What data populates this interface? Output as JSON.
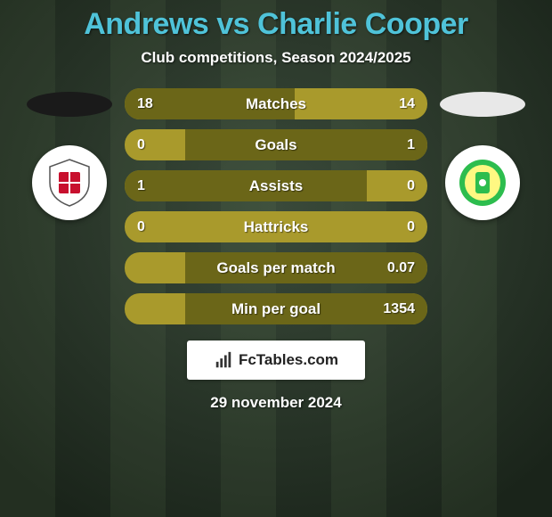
{
  "background": {
    "color_from": "#3a4a3a",
    "color_to": "#1a241a",
    "stripe_color_light": "rgba(120,150,100,0.10)",
    "stripe_color_dark": "rgba(0,0,0,0.0)",
    "stripe_width": 62
  },
  "title": {
    "text": "Andrews vs Charlie Cooper",
    "color": "#4fc3d9",
    "font_size": 34
  },
  "subtitle": {
    "text": "Club competitions, Season 2024/2025",
    "color": "#ffffff",
    "font_size": 17
  },
  "left_team": {
    "ellipse_color": "#1a1a1a",
    "crest_bg": "#ffffff",
    "crest_accent": "#c8102e",
    "crest_label": "WOKING"
  },
  "right_team": {
    "ellipse_color": "#e8e8e8",
    "crest_bg": "#ffffff",
    "crest_accent": "#2dbd4e",
    "crest_label": "YEOVIL TOWN"
  },
  "bars": {
    "track_color": "#a99a2c",
    "fill_color": "#6b6618",
    "text_color": "#ffffff",
    "stats": [
      {
        "label": "Matches",
        "left_val": "18",
        "right_val": "14",
        "left_pct": 56.25,
        "right_pct": 0
      },
      {
        "label": "Goals",
        "left_val": "0",
        "right_val": "1",
        "left_pct": 0,
        "right_pct": 80
      },
      {
        "label": "Assists",
        "left_val": "1",
        "right_val": "0",
        "left_pct": 80,
        "right_pct": 0
      },
      {
        "label": "Hattricks",
        "left_val": "0",
        "right_val": "0",
        "left_pct": 0,
        "right_pct": 0
      },
      {
        "label": "Goals per match",
        "left_val": "",
        "right_val": "0.07",
        "left_pct": 0,
        "right_pct": 80
      },
      {
        "label": "Min per goal",
        "left_val": "",
        "right_val": "1354",
        "left_pct": 0,
        "right_pct": 80
      }
    ]
  },
  "footer_badge": {
    "text": "FcTables.com",
    "icon_color": "#333333"
  },
  "footer_date": {
    "text": "29 november 2024",
    "color": "#ffffff"
  }
}
